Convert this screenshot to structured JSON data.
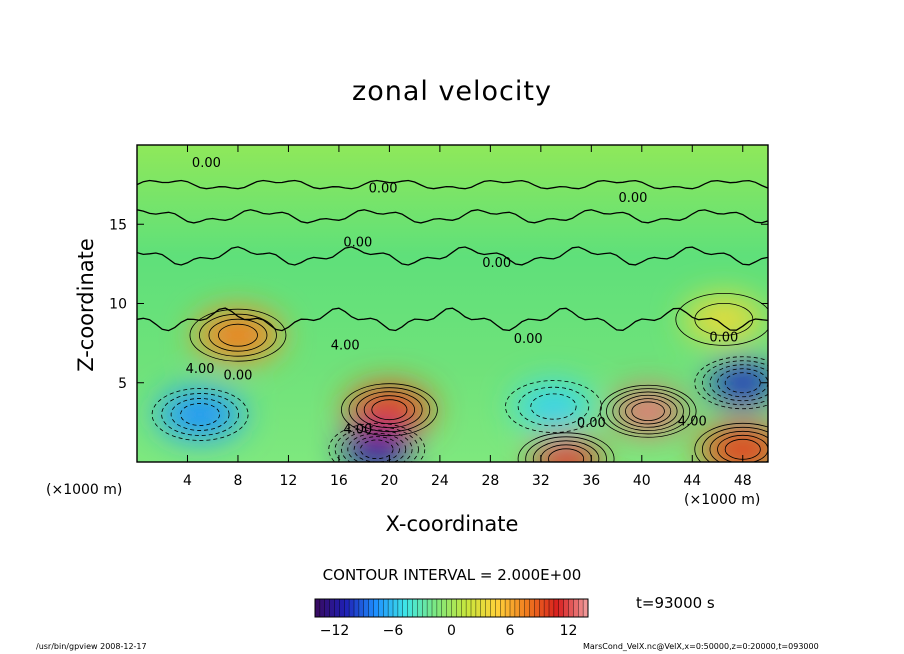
{
  "chart_data": {
    "type": "heatmap",
    "title": "zonal velocity",
    "xlabel": "X-coordinate",
    "ylabel": "Z-coordinate",
    "x_unit_left": "(×1000 m)",
    "x_unit_right": "(×1000 m)",
    "xlim": [
      0,
      50
    ],
    "ylim": [
      0,
      20
    ],
    "x_ticks": [
      4,
      8,
      12,
      16,
      20,
      24,
      28,
      32,
      36,
      40,
      44,
      48
    ],
    "y_ticks": [
      5,
      10,
      15
    ],
    "contour_interval_text": "CONTOUR INTERVAL = 2.000E+00",
    "colorbar_range": [
      -14,
      14
    ],
    "colorbar_ticks": [
      -12,
      -6,
      0,
      6,
      12
    ],
    "contour_labels": [
      {
        "text": "0.00",
        "x": 5.5,
        "y": 18.6
      },
      {
        "text": "0.00",
        "x": 19.5,
        "y": 17.0
      },
      {
        "text": "0.00",
        "x": 39.3,
        "y": 16.4
      },
      {
        "text": "0.00",
        "x": 17.5,
        "y": 13.6
      },
      {
        "text": "0.00",
        "x": 28.5,
        "y": 12.3
      },
      {
        "text": "4.00",
        "x": 16.5,
        "y": 7.1
      },
      {
        "text": "0.00",
        "x": 31.0,
        "y": 7.5
      },
      {
        "text": "0.00",
        "x": 46.5,
        "y": 7.6
      },
      {
        "text": "4.00",
        "x": 5.0,
        "y": 5.6
      },
      {
        "text": "0.00",
        "x": 8.0,
        "y": 5.2
      },
      {
        "text": "4.00",
        "x": 17.5,
        "y": 1.8
      },
      {
        "text": "0.00",
        "x": 36.0,
        "y": 2.2
      },
      {
        "text": "4.00",
        "x": 44.0,
        "y": 2.3
      }
    ],
    "features": [
      {
        "x": 8,
        "y": 8,
        "value": 7
      },
      {
        "x": 20,
        "y": 3.3,
        "value": 9
      },
      {
        "x": 40.5,
        "y": 3.2,
        "value": 12
      },
      {
        "x": 48,
        "y": 0.8,
        "value": 9
      },
      {
        "x": 34,
        "y": 0.2,
        "value": 10
      },
      {
        "x": 19,
        "y": 0.8,
        "value": -11
      },
      {
        "x": 5,
        "y": 3,
        "value": -7
      },
      {
        "x": 48,
        "y": 5,
        "value": -10
      },
      {
        "x": 33,
        "y": 3.5,
        "value": -5
      },
      {
        "x": 46.5,
        "y": 9,
        "value": 3
      }
    ]
  },
  "annotations": {
    "time": "t=93000 s",
    "program": "/usr/bin/gpview   2008-12-17",
    "variable": "MarsCond_VelX.nc@VelX,x=0:50000,z=0:20000,t=093000"
  },
  "colors": {
    "cmap": [
      "#3a0a5e",
      "#1f1fb5",
      "#1e90ff",
      "#3fe6e6",
      "#7ee87e",
      "#c8e63c",
      "#ffd23a",
      "#f07a1e",
      "#d81e1e",
      "#f2a0a0"
    ]
  }
}
